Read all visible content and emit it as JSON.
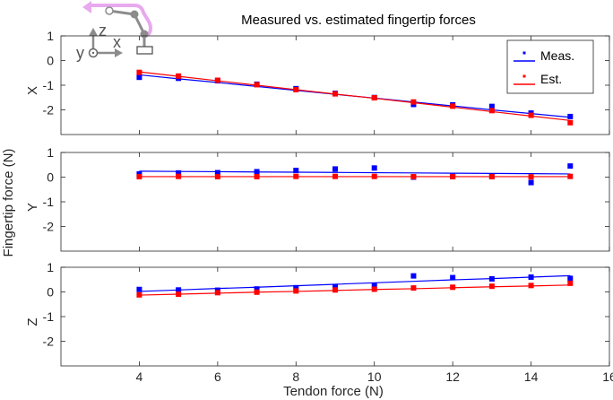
{
  "chart_data": {
    "type": "line",
    "title": "Measured vs. estimated fingertip forces",
    "xlabel": "Tendon force (N)",
    "ylabel": "Fingertip force (N)",
    "xlim": [
      2,
      16
    ],
    "xticks": [
      "4",
      "6",
      "8",
      "10",
      "12",
      "14",
      "16"
    ],
    "yticks": [
      "1",
      "0",
      "-1",
      "-2"
    ],
    "grid": false,
    "legend": {
      "position": "top-right",
      "entries": [
        {
          "label": "Meas.",
          "color": "#0000ff"
        },
        {
          "label": "Est.",
          "color": "#ff0000"
        }
      ]
    },
    "inset": {
      "axes_labels": [
        "z",
        "x",
        "y"
      ],
      "finger_color": "#e8a9ee"
    },
    "panels": [
      {
        "name": "X",
        "ylim": [
          -3,
          1
        ],
        "series": [
          {
            "name": "Meas.",
            "color": "#0000ff",
            "x": [
              4,
              5,
              6,
              7,
              8,
              9,
              10,
              11,
              12,
              13,
              14,
              15
            ],
            "points": [
              -0.68,
              -0.72,
              -0.82,
              -0.96,
              -1.14,
              -1.33,
              -1.5,
              -1.78,
              -1.8,
              -1.86,
              -2.13,
              -2.27
            ],
            "fit": [
              -0.58,
              -0.74,
              -0.89,
              -1.05,
              -1.21,
              -1.37,
              -1.52,
              -1.68,
              -1.84,
              -2.0,
              -2.15,
              -2.3
            ]
          },
          {
            "name": "Est.",
            "color": "#ff0000",
            "x": [
              4,
              5,
              6,
              7,
              8,
              9,
              10,
              11,
              12,
              13,
              14,
              15
            ],
            "points": [
              -0.48,
              -0.63,
              -0.8,
              -0.98,
              -1.18,
              -1.35,
              -1.51,
              -1.68,
              -1.85,
              -2.03,
              -2.22,
              -2.52
            ],
            "fit": [
              -0.46,
              -0.64,
              -0.82,
              -1.0,
              -1.18,
              -1.36,
              -1.53,
              -1.71,
              -1.89,
              -2.07,
              -2.25,
              -2.43
            ]
          }
        ]
      },
      {
        "name": "Y",
        "ylim": [
          -3,
          1
        ],
        "series": [
          {
            "name": "Meas.",
            "color": "#0000ff",
            "x": [
              4,
              5,
              6,
              7,
              8,
              9,
              10,
              11,
              12,
              13,
              14,
              15
            ],
            "points": [
              0.13,
              0.17,
              0.18,
              0.22,
              0.27,
              0.33,
              0.37,
              0.0,
              0.03,
              0.02,
              -0.22,
              0.45
            ],
            "fit": [
              0.24,
              0.23,
              0.22,
              0.21,
              0.2,
              0.19,
              0.18,
              0.17,
              0.16,
              0.15,
              0.14,
              0.13
            ]
          },
          {
            "name": "Est.",
            "color": "#ff0000",
            "x": [
              4,
              5,
              6,
              7,
              8,
              9,
              10,
              11,
              12,
              13,
              14,
              15
            ],
            "points": [
              0.02,
              0.03,
              0.02,
              0.02,
              0.03,
              0.03,
              0.03,
              0.02,
              0.02,
              0.02,
              0.01,
              0.03
            ],
            "fit": [
              0.02,
              0.02,
              0.02,
              0.02,
              0.02,
              0.02,
              0.02,
              0.02,
              0.02,
              0.02,
              0.02,
              0.02
            ]
          }
        ]
      },
      {
        "name": "Z",
        "ylim": [
          -3,
          1
        ],
        "series": [
          {
            "name": "Meas.",
            "color": "#0000ff",
            "x": [
              4,
              5,
              6,
              7,
              8,
              9,
              10,
              11,
              12,
              13,
              14,
              15
            ],
            "points": [
              0.1,
              0.08,
              0.07,
              0.12,
              0.17,
              0.22,
              0.26,
              0.65,
              0.58,
              0.53,
              0.6,
              0.55
            ],
            "fit": [
              0.02,
              0.08,
              0.14,
              0.19,
              0.25,
              0.31,
              0.37,
              0.43,
              0.49,
              0.54,
              0.6,
              0.66
            ]
          },
          {
            "name": "Est.",
            "color": "#ff0000",
            "x": [
              4,
              5,
              6,
              7,
              8,
              9,
              10,
              11,
              12,
              13,
              14,
              15
            ],
            "points": [
              -0.12,
              -0.09,
              -0.03,
              -0.01,
              0.04,
              0.08,
              0.11,
              0.16,
              0.19,
              0.23,
              0.26,
              0.35
            ],
            "fit": [
              -0.13,
              -0.09,
              -0.05,
              -0.01,
              0.02,
              0.06,
              0.1,
              0.13,
              0.17,
              0.21,
              0.24,
              0.28
            ]
          }
        ]
      }
    ]
  }
}
